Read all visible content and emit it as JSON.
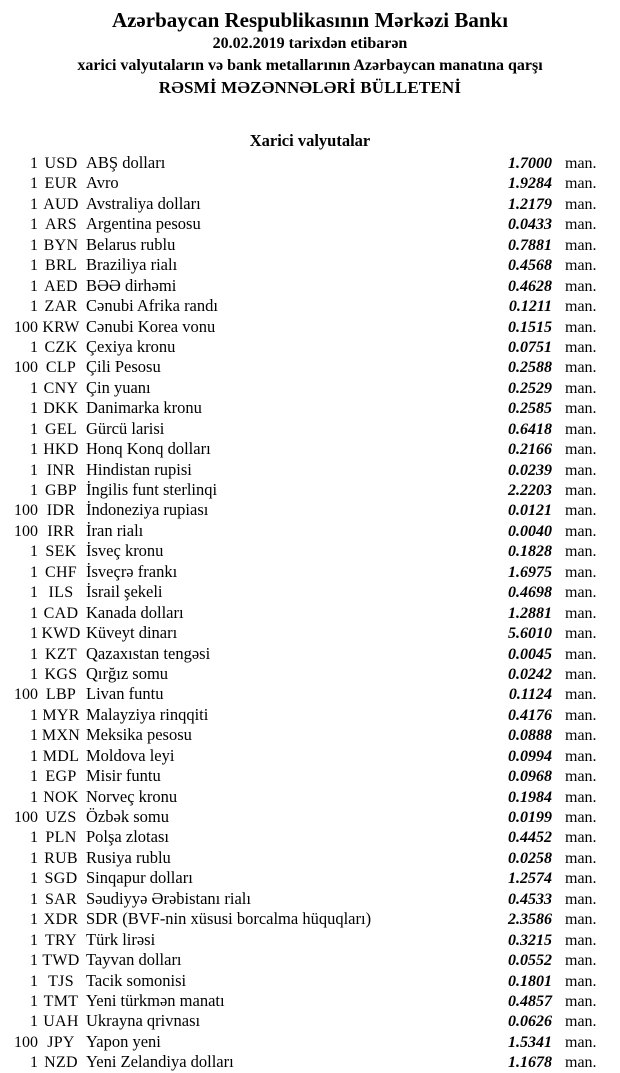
{
  "header": {
    "bank_name": "Azərbaycan Respublikasının Mərkəzi Bankı",
    "date_line": "20.02.2019 tarixdən etibarən",
    "subtitle": "xarici valyutaların və bank metallarının Azərbaycan manatına qarşı",
    "bulletin_title": "RƏSMİ MƏZƏNNƏLƏRİ BÜLLETENİ"
  },
  "section": {
    "title": "Xarici valyutalar"
  },
  "unit_label": "man.",
  "rates": [
    {
      "qty": "1",
      "code": "USD",
      "name": "ABŞ dolları",
      "rate": "1.7000"
    },
    {
      "qty": "1",
      "code": "EUR",
      "name": "Avro",
      "rate": "1.9284"
    },
    {
      "qty": "1",
      "code": "AUD",
      "name": "Avstraliya dolları",
      "rate": "1.2179"
    },
    {
      "qty": "1",
      "code": "ARS",
      "name": "Argentina pesosu",
      "rate": "0.0433"
    },
    {
      "qty": "1",
      "code": "BYN",
      "name": "Belarus rublu",
      "rate": "0.7881"
    },
    {
      "qty": "1",
      "code": "BRL",
      "name": "Braziliya rialı",
      "rate": "0.4568"
    },
    {
      "qty": "1",
      "code": "AED",
      "name": "BƏƏ dirhəmi",
      "rate": "0.4628"
    },
    {
      "qty": "1",
      "code": "ZAR",
      "name": "Cənubi Afrika randı",
      "rate": "0.1211"
    },
    {
      "qty": "100",
      "code": "KRW",
      "name": "Cənubi Korea vonu",
      "rate": "0.1515"
    },
    {
      "qty": "1",
      "code": "CZK",
      "name": "Çexiya kronu",
      "rate": "0.0751"
    },
    {
      "qty": "100",
      "code": "CLP",
      "name": "Çili Pesosu",
      "rate": "0.2588"
    },
    {
      "qty": "1",
      "code": "CNY",
      "name": "Çin yuanı",
      "rate": "0.2529"
    },
    {
      "qty": "1",
      "code": "DKK",
      "name": "Danimarka kronu",
      "rate": "0.2585"
    },
    {
      "qty": "1",
      "code": "GEL",
      "name": "Gürcü larisi",
      "rate": "0.6418"
    },
    {
      "qty": "1",
      "code": "HKD",
      "name": "Honq Konq dolları",
      "rate": "0.2166"
    },
    {
      "qty": "1",
      "code": "INR",
      "name": "Hindistan rupisi",
      "rate": "0.0239"
    },
    {
      "qty": "1",
      "code": "GBP",
      "name": "İngilis funt sterlinqi",
      "rate": "2.2203"
    },
    {
      "qty": "100",
      "code": "IDR",
      "name": "İndoneziya rupiası",
      "rate": "0.0121"
    },
    {
      "qty": "100",
      "code": "IRR",
      "name": "İran rialı",
      "rate": "0.0040"
    },
    {
      "qty": "1",
      "code": "SEK",
      "name": "İsveç kronu",
      "rate": "0.1828"
    },
    {
      "qty": "1",
      "code": "CHF",
      "name": "İsveçrə frankı",
      "rate": "1.6975"
    },
    {
      "qty": "1",
      "code": "ILS",
      "name": "İsrail şekeli",
      "rate": "0.4698"
    },
    {
      "qty": "1",
      "code": "CAD",
      "name": "Kanada dolları",
      "rate": "1.2881"
    },
    {
      "qty": "1",
      "code": "KWD",
      "name": "Küveyt dinarı",
      "rate": "5.6010"
    },
    {
      "qty": "1",
      "code": "KZT",
      "name": "Qazaxıstan tengəsi",
      "rate": "0.0045"
    },
    {
      "qty": "1",
      "code": "KGS",
      "name": "Qırğız somu",
      "rate": "0.0242"
    },
    {
      "qty": "100",
      "code": "LBP",
      "name": "Livan funtu",
      "rate": "0.1124"
    },
    {
      "qty": "1",
      "code": "MYR",
      "name": "Malayziya rinqqiti",
      "rate": "0.4176"
    },
    {
      "qty": "1",
      "code": "MXN",
      "name": "Meksika pesosu",
      "rate": "0.0888"
    },
    {
      "qty": "1",
      "code": "MDL",
      "name": "Moldova leyi",
      "rate": "0.0994"
    },
    {
      "qty": "1",
      "code": "EGP",
      "name": "Misir funtu",
      "rate": "0.0968"
    },
    {
      "qty": "1",
      "code": "NOK",
      "name": "Norveç kronu",
      "rate": "0.1984"
    },
    {
      "qty": "100",
      "code": "UZS",
      "name": "Özbək somu",
      "rate": "0.0199"
    },
    {
      "qty": "1",
      "code": "PLN",
      "name": "Polşa zlotası",
      "rate": "0.4452"
    },
    {
      "qty": "1",
      "code": "RUB",
      "name": "Rusiya rublu",
      "rate": "0.0258"
    },
    {
      "qty": "1",
      "code": "SGD",
      "name": "Sinqapur dolları",
      "rate": "1.2574"
    },
    {
      "qty": "1",
      "code": "SAR",
      "name": "Səudiyyə Ərəbistanı rialı",
      "rate": "0.4533"
    },
    {
      "qty": "1",
      "code": "XDR",
      "name": "SDR (BVF-nin xüsusi borcalma hüquqları)",
      "rate": "2.3586"
    },
    {
      "qty": "1",
      "code": "TRY",
      "name": "Türk lirəsi",
      "rate": "0.3215"
    },
    {
      "qty": "1",
      "code": "TWD",
      "name": "Tayvan dolları",
      "rate": "0.0552"
    },
    {
      "qty": "1",
      "code": "TJS",
      "name": "Tacik somonisi",
      "rate": "0.1801"
    },
    {
      "qty": "1",
      "code": "TMT",
      "name": "Yeni türkmən manatı",
      "rate": "0.4857"
    },
    {
      "qty": "1",
      "code": "UAH",
      "name": "Ukrayna qrivnası",
      "rate": "0.0626"
    },
    {
      "qty": "100",
      "code": "JPY",
      "name": "Yapon yeni",
      "rate": "1.5341"
    },
    {
      "qty": "1",
      "code": "NZD",
      "name": "Yeni Zelandiya dolları",
      "rate": "1.1678"
    }
  ]
}
